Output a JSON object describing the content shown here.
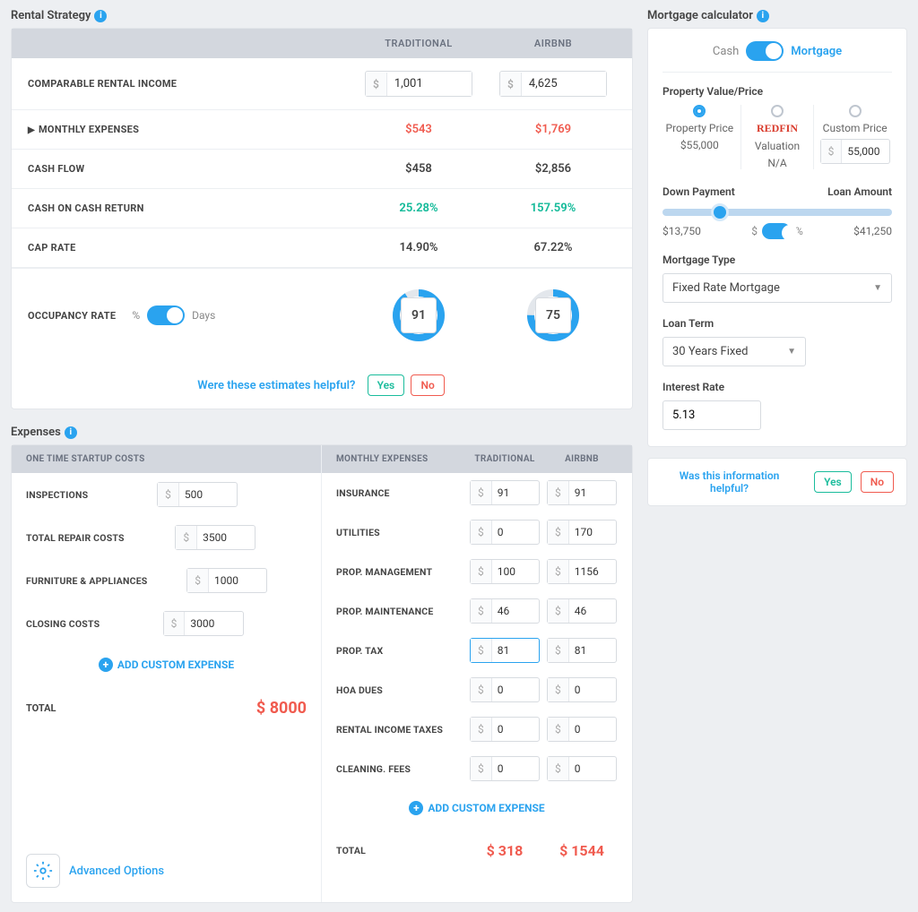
{
  "colors": {
    "accent": "#2aa3ef",
    "red": "#f05b4f",
    "green": "#1abc9c",
    "headerBg": "#d3d7de",
    "border": "#e3e6ea"
  },
  "rentalStrategy": {
    "title": "Rental Strategy",
    "columns": {
      "trad": "TRADITIONAL",
      "airbnb": "AIRBNB"
    },
    "rows": {
      "income": {
        "label": "COMPARABLE RENTAL INCOME",
        "trad": "1,001",
        "airbnb": "4,625"
      },
      "monthlyExp": {
        "label": "MONTHLY EXPENSES",
        "trad": "$543",
        "airbnb": "$1,769"
      },
      "cashFlow": {
        "label": "CASH FLOW",
        "trad": "$458",
        "airbnb": "$2,856"
      },
      "coc": {
        "label": "CASH ON CASH RETURN",
        "trad": "25.28%",
        "airbnb": "157.59%"
      },
      "cap": {
        "label": "CAP RATE",
        "trad": "14.90%",
        "airbnb": "67.22%"
      },
      "occ": {
        "label": "OCCUPANCY RATE",
        "pctLabel": "%",
        "daysLabel": "Days",
        "trad": "91",
        "tradPct": 91,
        "airbnb": "75",
        "airbnbPct": 75
      }
    },
    "helpfulQ": "Were these estimates helpful?",
    "yes": "Yes",
    "no": "No"
  },
  "expenses": {
    "title": "Expenses",
    "startupHeader": "ONE TIME STARTUP COSTS",
    "monthlyHeader": "MONTHLY EXPENSES",
    "tradCol": "TRADITIONAL",
    "airbnbCol": "AIRBNB",
    "startup": [
      {
        "label": "INSPECTIONS",
        "value": "500"
      },
      {
        "label": "TOTAL REPAIR COSTS",
        "value": "3500"
      },
      {
        "label": "FURNITURE & APPLIANCES",
        "value": "1000"
      },
      {
        "label": "CLOSING COSTS",
        "value": "3000"
      }
    ],
    "addCustom": "ADD CUSTOM EXPENSE",
    "startupTotalLabel": "TOTAL",
    "startupTotal": "$ 8000",
    "monthly": [
      {
        "label": "INSURANCE",
        "trad": "91",
        "airbnb": "91"
      },
      {
        "label": "UTILITIES",
        "trad": "0",
        "airbnb": "170"
      },
      {
        "label": "PROP. MANAGEMENT",
        "trad": "100",
        "airbnb": "1156"
      },
      {
        "label": "PROP. MAINTENANCE",
        "trad": "46",
        "airbnb": "46"
      },
      {
        "label": "PROP. TAX",
        "trad": "81",
        "airbnb": "81",
        "focusTrad": true
      },
      {
        "label": "HOA DUES",
        "trad": "0",
        "airbnb": "0"
      },
      {
        "label": "RENTAL INCOME TAXES",
        "trad": "0",
        "airbnb": "0"
      },
      {
        "label": "CLEANING. FEES",
        "trad": "0",
        "airbnb": "0"
      }
    ],
    "monthlyTotalLabel": "TOTAL",
    "monthlyTotalTrad": "$ 318",
    "monthlyTotalAirbnb": "$ 1544",
    "advanced": "Advanced Options"
  },
  "mortgage": {
    "title": "Mortgage calculator",
    "cash": "Cash",
    "mortgage": "Mortgage",
    "pvLabel": "Property Value/Price",
    "pv": {
      "price": {
        "label": "Property Price",
        "value": "$55,000",
        "selected": true
      },
      "redfin": {
        "brand": "REDFIN",
        "label": "Valuation",
        "value": "N/A"
      },
      "custom": {
        "label": "Custom Price",
        "value": "55,000"
      }
    },
    "dpLabel": "Down Payment",
    "laLabel": "Loan Amount",
    "dpValue": "$13,750",
    "laValue": "$41,250",
    "sliderPct": 25,
    "dollarSym": "$",
    "pctSym": "%",
    "typeLabel": "Mortgage Type",
    "typeValue": "Fixed Rate Mortgage",
    "termLabel": "Loan Term",
    "termValue": "30 Years Fixed",
    "rateLabel": "Interest Rate",
    "rateValue": "5.13",
    "helpfulQ": "Was this information helpful?",
    "yes": "Yes",
    "no": "No"
  }
}
